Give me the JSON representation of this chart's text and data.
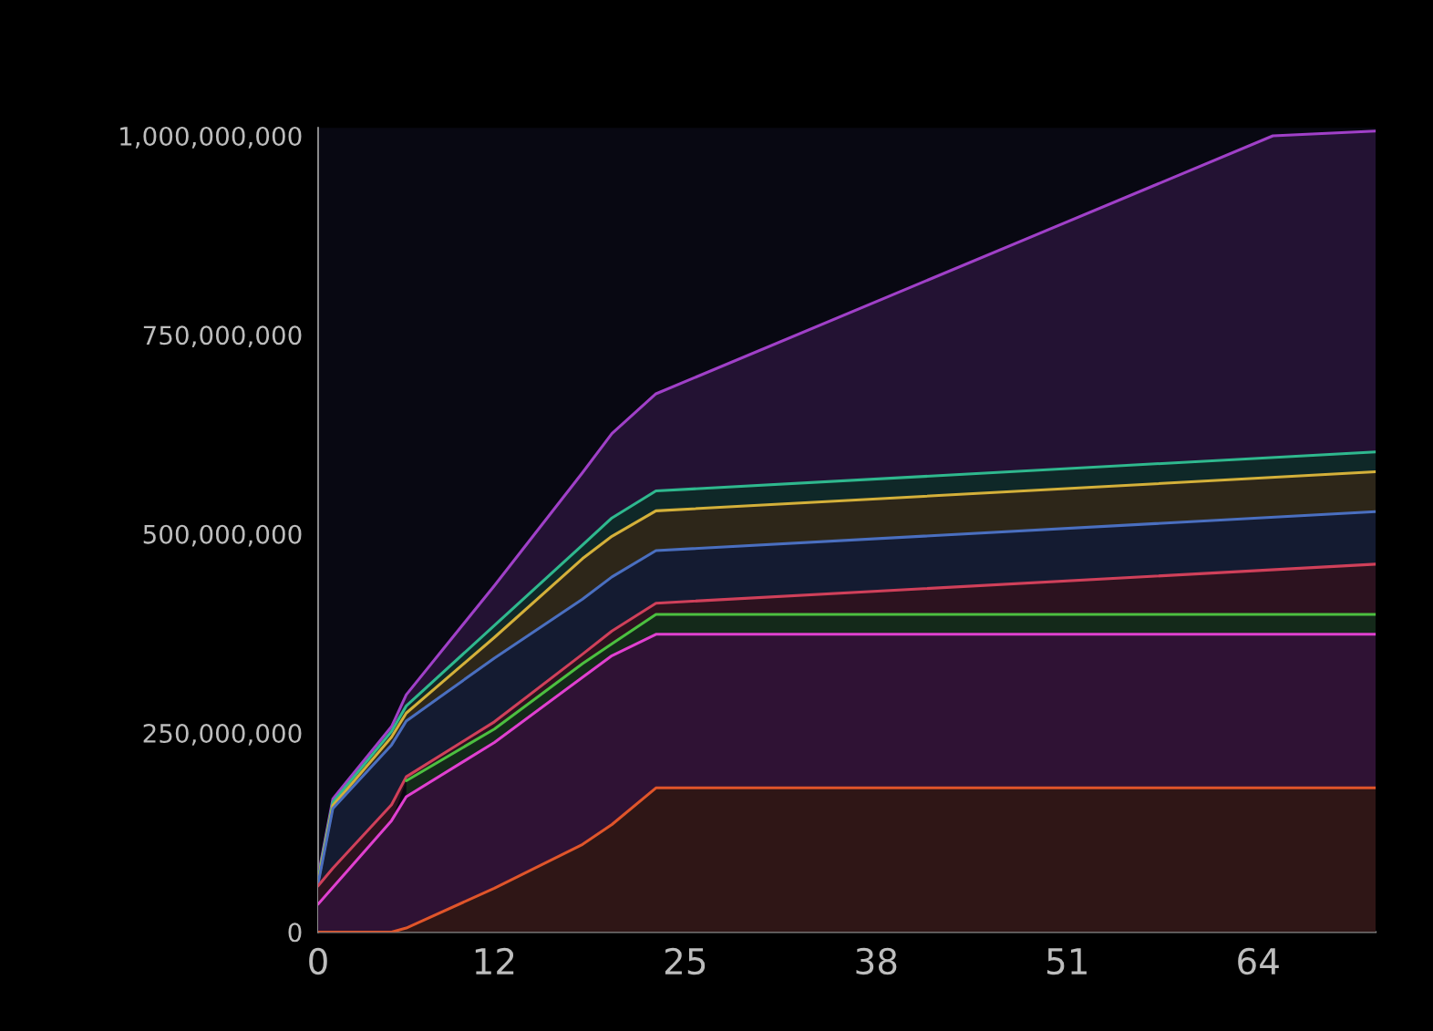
{
  "chart_data": {
    "type": "area",
    "x": [
      0,
      1,
      2,
      5,
      6,
      12,
      18,
      20,
      23,
      72
    ],
    "series": [
      {
        "color": "#a040c8",
        "x": [
          0,
          1,
          2,
          5,
          6,
          12,
          18,
          20,
          23,
          65,
          72
        ],
        "values": [
          70000000,
          167000000,
          190000000,
          258000000,
          298000000,
          435000000,
          577000000,
          626000000,
          676000000,
          1000000000,
          1006000000
        ]
      },
      {
        "color": "#2fb88e",
        "values": [
          67000000,
          163000000,
          185000000,
          252000000,
          284000000,
          385000000,
          486000000,
          520000000,
          554000000,
          603000000
        ]
      },
      {
        "color": "#d4b03a",
        "values": [
          64000000,
          159000000,
          180000000,
          245000000,
          275000000,
          370000000,
          469000000,
          497000000,
          529000000,
          578000000
        ]
      },
      {
        "color": "#4a6fc0",
        "values": [
          61000000,
          155000000,
          175000000,
          235000000,
          265000000,
          344000000,
          418000000,
          446000000,
          479000000,
          528000000
        ]
      },
      {
        "color": "#d0405a",
        "values": [
          58000000,
          80000000,
          100000000,
          160000000,
          195000000,
          264000000,
          349000000,
          378000000,
          413000000,
          462000000
        ]
      },
      {
        "color": "#4cc040",
        "values": [
          null,
          null,
          null,
          null,
          190000000,
          255000000,
          337000000,
          362000000,
          399000000,
          399000000
        ]
      },
      {
        "color": "#e040d0",
        "values": [
          35000000,
          56000000,
          77000000,
          140000000,
          170000000,
          238000000,
          320000000,
          347000000,
          374000000,
          374000000
        ]
      },
      {
        "color": "#e0552a",
        "values": [
          0,
          0,
          0,
          0,
          5000000,
          55000000,
          110000000,
          135000000,
          181000000,
          181000000
        ]
      }
    ],
    "xlim": [
      0,
      72
    ],
    "xticks": [
      0,
      12,
      25,
      38,
      51,
      64
    ],
    "ylim": [
      0,
      1010000000
    ],
    "yticks": [
      {
        "value": 0,
        "label": "0"
      },
      {
        "value": 250000000,
        "label": "250,000,000"
      },
      {
        "value": 500000000,
        "label": "500,000,000"
      },
      {
        "value": 750000000,
        "label": "750,000,000"
      },
      {
        "value": 1000000000,
        "label": "1,000,000,000"
      }
    ],
    "grid": false
  }
}
